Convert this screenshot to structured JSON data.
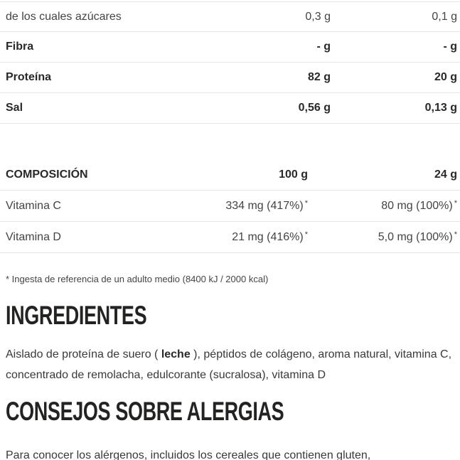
{
  "nutrition": {
    "rows": [
      {
        "label": "de los cuales azúcares",
        "per100": "0,3 g",
        "per24": "0,1 g"
      },
      {
        "label": "Fibra",
        "per100": "- g",
        "per24": "- g"
      },
      {
        "label": "Proteína",
        "per100": "82 g",
        "per24": "20 g"
      },
      {
        "label": "Sal",
        "per100": "0,56 g",
        "per24": "0,13 g"
      }
    ]
  },
  "composition": {
    "title": "COMPOSICIÓN",
    "col_per100": "100 g",
    "col_per24": "24 g",
    "rows": [
      {
        "label": "Vitamina C",
        "per100": "334 mg (417%)",
        "per24": "80 mg (100%)",
        "star": "*"
      },
      {
        "label": "Vitamina D",
        "per100": "21 mg (416%)",
        "per24": "5,0 mg (100%)",
        "star": "*"
      }
    ],
    "footnote": "* Ingesta de referencia de un adulto medio (8400 kJ / 2000 kcal)"
  },
  "ingredients": {
    "title": "INGREDIENTES",
    "text_before": "Aislado de proteína de suero ( ",
    "allergen": "leche",
    "text_after": " ), péptidos de colágeno, aroma natural, vitamina C, concentrado de remolacha, edulcorante (sucralosa), vitamina D"
  },
  "allergy": {
    "title": "CONSEJOS SOBRE ALERGIAS",
    "text": "Para conocer los alérgenos, incluidos los cereales que contienen gluten,"
  },
  "colors": {
    "divider": "#e6e6e6",
    "text_bold": "#2a2928",
    "text_regular": "#454442"
  }
}
